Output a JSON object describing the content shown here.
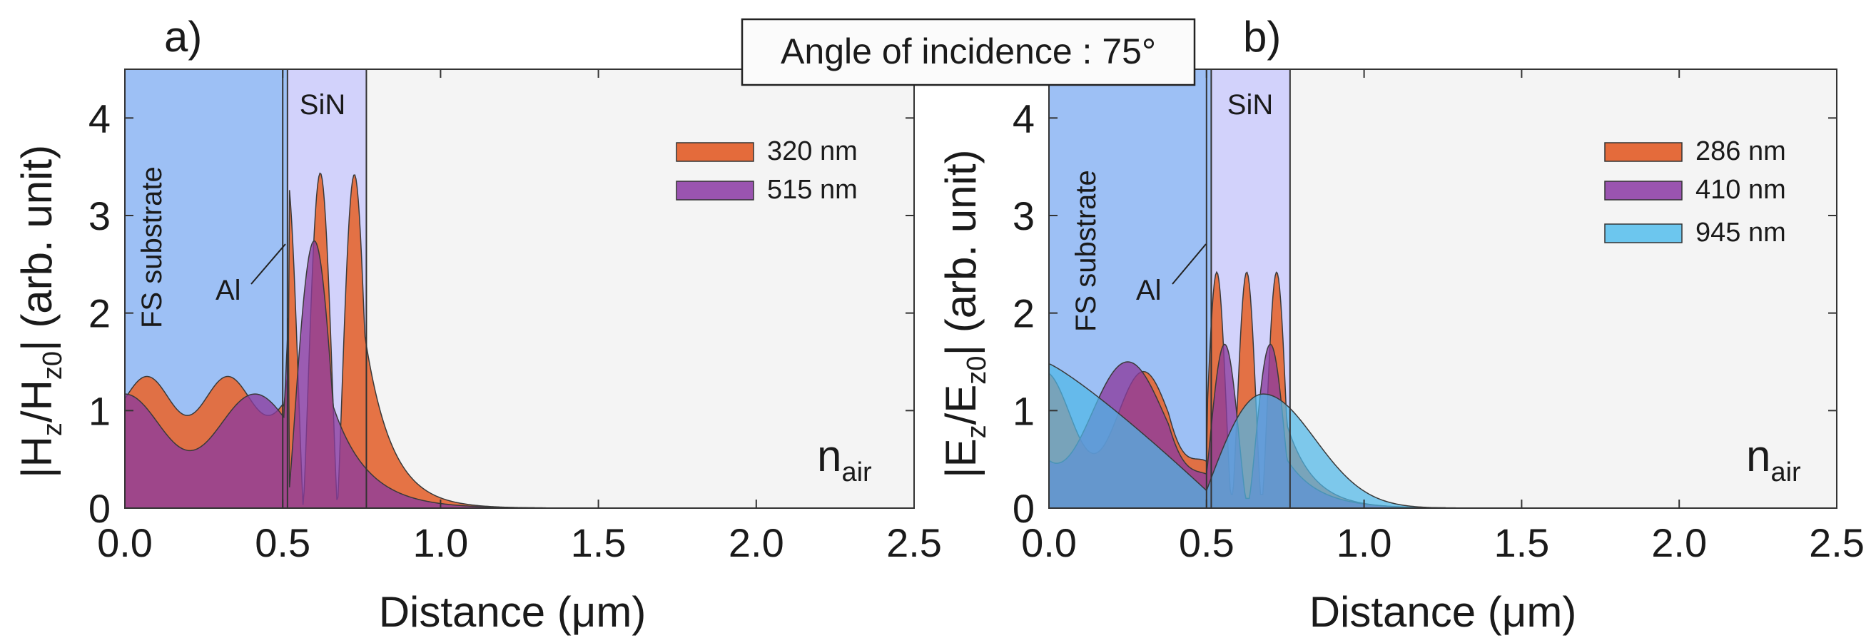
{
  "banner": {
    "text": "Angle of incidence : 75°"
  },
  "chart_data": [
    {
      "type": "area",
      "panel_label": "a)",
      "xlabel": "Distance (μm)",
      "ylabel": "|Hz/Hz0| (arb. unit)",
      "ylabel_parts": {
        "a": "|H",
        "b": "z",
        "c": "/H",
        "d": "z0",
        "e": "| (arb. unit)"
      },
      "xlim": [
        0,
        2.5
      ],
      "ylim": [
        0,
        4.5
      ],
      "xticks": [
        0,
        0.5,
        1,
        1.5,
        2,
        2.5
      ],
      "xtick_labels": [
        "0.0",
        "0.5",
        "1.0",
        "1.5",
        "2.0",
        "2.5"
      ],
      "yticks": [
        0,
        1,
        2,
        3,
        4
      ],
      "ytick_labels": [
        "0",
        "1",
        "2",
        "3",
        "4"
      ],
      "regions": [
        {
          "name": "substrate",
          "label": "FS substrate",
          "x0": 0,
          "x1": 0.5,
          "color": "#9dc0f5"
        },
        {
          "name": "al",
          "label": "Al",
          "x0": 0.5,
          "x1": 0.515,
          "color": "#9dc0f5"
        },
        {
          "name": "sin",
          "label": "SiN",
          "x0": 0.515,
          "x1": 0.765,
          "color": "#d2d2fb"
        },
        {
          "name": "air",
          "label": "n",
          "label_sub": "air",
          "x0": 0.765,
          "x1": 2.5,
          "color": "#f4f4f4"
        }
      ],
      "series": [
        {
          "name": "320 nm",
          "color": "#e46b3b",
          "opacity": 0.95,
          "mode": "tm",
          "lambda": 0.32,
          "sub_mean": 1.15,
          "sub_amp": 0.2,
          "sub_phase": 0.07,
          "al_end": 0.25,
          "sin_period": 0.108,
          "sin_amp": 3.45,
          "sin_offset": 0.05,
          "decay_start": 0.7,
          "decay_len": 0.085
        },
        {
          "name": "515 nm",
          "color": "#8c3b9e",
          "opacity": 0.78,
          "mode": "tm",
          "lambda": 0.515,
          "sub_mean": 0.88,
          "sub_amp": 0.29,
          "sub_phase": 0.0,
          "al_end": 0.35,
          "sin_period": 0.17,
          "sin_amp": 2.75,
          "sin_offset": 0.0,
          "decay_start": 0.6,
          "decay_len": 0.11
        }
      ],
      "legend": [
        "320 nm",
        "515 nm"
      ]
    },
    {
      "type": "area",
      "panel_label": "b)",
      "xlabel": "Distance (μm)",
      "ylabel": "|Ez/Ez0| (arb. unit)",
      "ylabel_parts": {
        "a": "|E",
        "b": "z",
        "c": "/E",
        "d": "z0",
        "e": "| (arb. unit)"
      },
      "xlim": [
        0,
        2.5
      ],
      "ylim": [
        0,
        4.5
      ],
      "xticks": [
        0,
        0.5,
        1,
        1.5,
        2,
        2.5
      ],
      "xtick_labels": [
        "0.0",
        "0.5",
        "1.0",
        "1.5",
        "2.0",
        "2.5"
      ],
      "yticks": [
        0,
        1,
        2,
        3,
        4
      ],
      "ytick_labels": [
        "0",
        "1",
        "2",
        "3",
        "4"
      ],
      "regions": [
        {
          "name": "substrate",
          "label": "FS substrate",
          "x0": 0,
          "x1": 0.5,
          "color": "#9dc0f5"
        },
        {
          "name": "al",
          "label": "Al",
          "x0": 0.5,
          "x1": 0.515,
          "color": "#9dc0f5"
        },
        {
          "name": "sin",
          "label": "SiN",
          "x0": 0.515,
          "x1": 0.765,
          "color": "#d2d2fb"
        },
        {
          "name": "air",
          "label": "n",
          "label_sub": "air",
          "x0": 0.765,
          "x1": 2.5,
          "color": "#f4f4f4"
        }
      ],
      "series": [
        {
          "name": "286 nm",
          "color": "#e46b3b",
          "opacity": 0.95,
          "mode": "te",
          "lambda": 0.286,
          "sub_mean": 0.98,
          "sub_amp": 0.42,
          "sub_center": 0.3,
          "sub_end": 0.48,
          "sin_period": 0.095,
          "sin_amp": 2.42,
          "sin_min": 0.35,
          "decay_start": 0.55,
          "decay_len": 0.085
        },
        {
          "name": "410 nm",
          "color": "#8c3b9e",
          "opacity": 0.78,
          "mode": "te",
          "lambda": 0.41,
          "sub_mean": 0.98,
          "sub_amp": 0.52,
          "sub_center": 0.25,
          "sub_end": 0.35,
          "sin_period": 0.145,
          "sin_amp": 1.68,
          "sin_min": 0.25,
          "decay_start": 0.75,
          "decay_len": 0.1
        },
        {
          "name": "945 nm",
          "color": "#4fb7e8",
          "opacity": 0.72,
          "mode": "broad",
          "lambda": 0.945,
          "start_val": 1.48,
          "sub_end": 0.18,
          "peak_x": 0.68,
          "peak_val": 1.17,
          "decay_len": 0.2,
          "lobe": 0.4,
          "lobe_x": 0.1,
          "lobe_w": 0.085
        }
      ],
      "legend": [
        "286 nm",
        "410 nm",
        "945 nm"
      ]
    }
  ]
}
